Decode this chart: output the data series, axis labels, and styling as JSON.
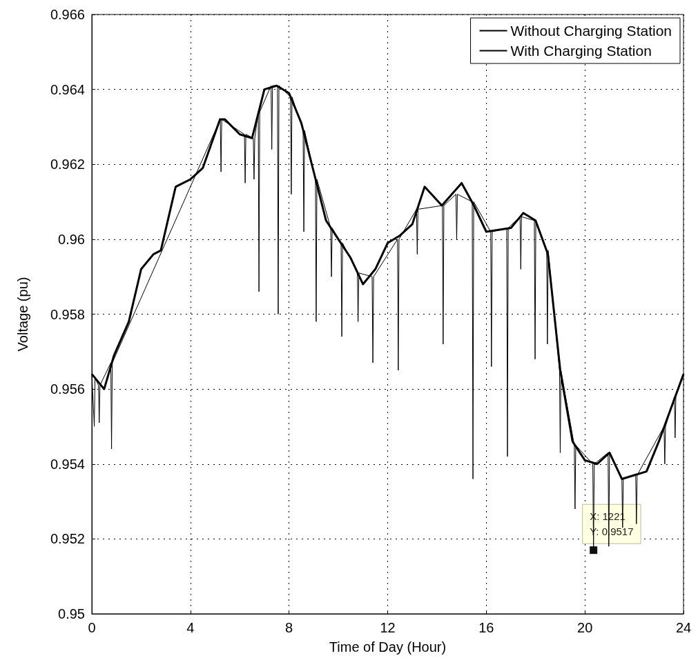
{
  "chart_data": {
    "type": "line",
    "xlabel": "Time of Day (Hour)",
    "ylabel": "Voltage (pu)",
    "xlim": [
      0,
      24
    ],
    "xticks": [
      0,
      4,
      8,
      12,
      16,
      20,
      24
    ],
    "ylim": [
      0.95,
      0.966
    ],
    "yticks": [
      0.95,
      0.952,
      0.954,
      0.956,
      0.958,
      0.96,
      0.962,
      0.964,
      0.966
    ],
    "grid": true,
    "legend": "top right",
    "marker": "none",
    "line_style": "solid",
    "annotations": [
      {
        "text": "X: 1221\nY: 0.9517",
        "x": 20.35,
        "y": 0.9517
      }
    ],
    "series": [
      {
        "name": "Without Charging Station",
        "color": "#000000",
        "x": [
          0,
          0.5,
          0.9,
          1.5,
          2,
          2.5,
          2.8,
          3.4,
          4,
          4.5,
          5.2,
          5.4,
          6,
          6.5,
          7,
          7.5,
          8,
          8.5,
          9,
          9.5,
          10,
          10.5,
          11,
          11.5,
          12,
          12.5,
          13,
          13.5,
          14.2,
          15,
          15.5,
          16,
          17,
          17.5,
          18,
          18.5,
          19,
          19.5,
          20,
          20.5,
          21,
          21.5,
          22,
          22.5,
          23,
          23.5,
          24
        ],
        "values": [
          0.9564,
          0.956,
          0.9569,
          0.9578,
          0.9592,
          0.9596,
          0.9597,
          0.9614,
          0.9616,
          0.9619,
          0.9632,
          0.9632,
          0.9628,
          0.9627,
          0.964,
          0.9641,
          0.9639,
          0.9631,
          0.9618,
          0.9605,
          0.96,
          0.9595,
          0.9588,
          0.9592,
          0.9599,
          0.9601,
          0.9604,
          0.9614,
          0.9609,
          0.9615,
          0.9609,
          0.9602,
          0.9603,
          0.9607,
          0.9605,
          0.9596,
          0.9565,
          0.9546,
          0.9541,
          0.954,
          0.9543,
          0.9536,
          0.9537,
          0.9538,
          0.9546,
          0.9555,
          0.9564
        ]
      },
      {
        "name": "With Charging Station",
        "color": "#000000",
        "x": [
          0,
          0.1,
          0.13,
          0.27,
          0.3,
          0.33,
          0.77,
          0.8,
          0.83,
          5.21,
          5.24,
          5.27,
          6.19,
          6.22,
          6.25,
          6.55,
          6.58,
          6.61,
          6.75,
          6.78,
          6.81,
          7.27,
          7.3,
          7.33,
          7.53,
          7.56,
          7.59,
          8.06,
          8.09,
          8.12,
          8.57,
          8.6,
          8.63,
          9.07,
          9.1,
          9.13,
          9.69,
          9.72,
          9.75,
          10.11,
          10.14,
          10.17,
          10.77,
          10.8,
          10.83,
          11.37,
          11.4,
          11.43,
          12.4,
          12.43,
          12.46,
          13.17,
          13.2,
          13.23,
          14.22,
          14.25,
          14.28,
          14.77,
          14.8,
          14.83,
          15.43,
          15.46,
          15.49,
          16.18,
          16.21,
          16.24,
          16.83,
          16.86,
          16.89,
          17.37,
          17.4,
          17.43,
          17.95,
          17.98,
          18.01,
          18.45,
          18.48,
          18.51,
          18.97,
          19,
          19.03,
          19.57,
          19.6,
          19.63,
          20.32,
          20.35,
          20.38,
          20.94,
          20.97,
          21,
          21.5,
          21.53,
          21.56,
          22.06,
          22.09,
          22.12,
          23.21,
          23.24,
          23.27,
          23.63,
          23.66,
          23.69,
          24
        ],
        "values": [
          0.9564,
          0.955,
          0.9563,
          0.9561,
          0.9551,
          0.9561,
          0.9567,
          0.9544,
          0.9567,
          0.9632,
          0.9618,
          0.9632,
          0.9628,
          0.9615,
          0.9628,
          0.9627,
          0.9616,
          0.9627,
          0.9634,
          0.9586,
          0.9634,
          0.9641,
          0.9624,
          0.9641,
          0.9641,
          0.958,
          0.9641,
          0.9638,
          0.9612,
          0.9638,
          0.9629,
          0.9602,
          0.9629,
          0.9616,
          0.9578,
          0.9616,
          0.9603,
          0.959,
          0.9603,
          0.9599,
          0.9574,
          0.9599,
          0.9591,
          0.9578,
          0.9591,
          0.959,
          0.9567,
          0.959,
          0.96,
          0.9565,
          0.96,
          0.9608,
          0.9596,
          0.9608,
          0.9609,
          0.9572,
          0.9609,
          0.9612,
          0.96,
          0.9612,
          0.961,
          0.9536,
          0.961,
          0.9602,
          0.9566,
          0.9602,
          0.9603,
          0.9542,
          0.9603,
          0.9606,
          0.9592,
          0.9606,
          0.9605,
          0.9568,
          0.9605,
          0.9597,
          0.9572,
          0.9597,
          0.9565,
          0.9543,
          0.9565,
          0.9545,
          0.9528,
          0.9545,
          0.954,
          0.9517,
          0.954,
          0.9543,
          0.9518,
          0.9543,
          0.9536,
          0.9523,
          0.9536,
          0.9537,
          0.9524,
          0.9537,
          0.955,
          0.954,
          0.955,
          0.9558,
          0.9547,
          0.9558,
          0.9564
        ]
      }
    ]
  }
}
